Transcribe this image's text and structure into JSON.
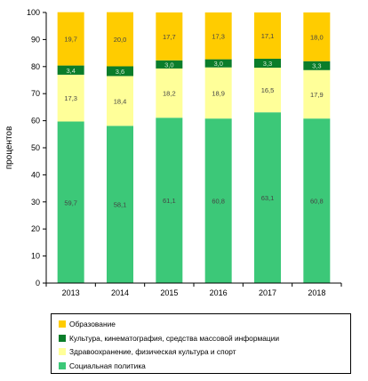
{
  "chart_data": {
    "type": "bar",
    "stacked": true,
    "ylabel": "процентов",
    "ylim": [
      0,
      100
    ],
    "yticks": [
      0,
      10,
      20,
      30,
      40,
      50,
      60,
      70,
      80,
      90,
      100
    ],
    "categories": [
      "2013",
      "2014",
      "2015",
      "2016",
      "2017",
      "2018"
    ],
    "series": [
      {
        "name": "Социальная политика",
        "color": "#3cc878",
        "values": [
          59.7,
          58.1,
          61.1,
          60.8,
          63.1,
          60.8
        ],
        "labels": [
          "59,7",
          "58,1",
          "61,1",
          "60,8",
          "63,1",
          "60,8"
        ]
      },
      {
        "name": "Здравоохранение, физическая культура и спорт",
        "color": "#ffff99",
        "values": [
          17.3,
          18.4,
          18.2,
          18.9,
          16.5,
          17.9
        ],
        "labels": [
          "17,3",
          "18,4",
          "18,2",
          "18,9",
          "16,5",
          "17,9"
        ]
      },
      {
        "name": "Культура, кинематография, средства массовой информации",
        "color": "#0a7d2a",
        "values": [
          3.4,
          3.6,
          3.0,
          3.0,
          3.3,
          3.3
        ],
        "labels": [
          "3,4",
          "3,6",
          "3,0",
          "3,0",
          "3,3",
          "3,3"
        ]
      },
      {
        "name": "Образование",
        "color": "#ffcc00",
        "values": [
          19.7,
          20.0,
          17.7,
          17.3,
          17.1,
          18.0
        ],
        "labels": [
          "19,7",
          "20,0",
          "17,7",
          "17,3",
          "17,1",
          "18,0"
        ]
      }
    ],
    "legend_order": [
      "Образование",
      "Культура, кинематография, средства массовой информации",
      "Здравоохранение, физическая культура и спорт",
      "Социальная политика"
    ],
    "legend_position": "bottom",
    "grid": false
  }
}
